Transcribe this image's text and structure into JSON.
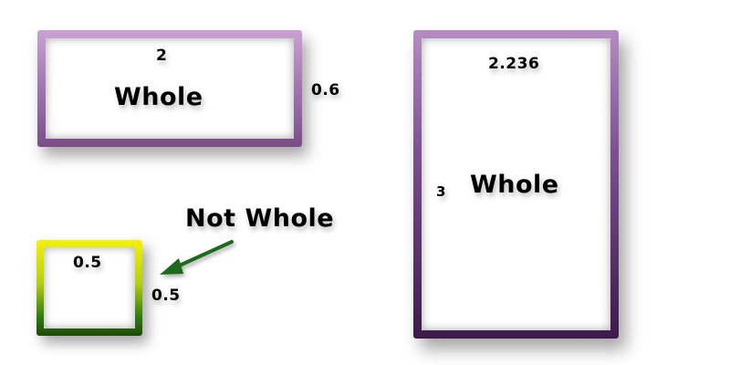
{
  "shapes": {
    "rect_wide": {
      "top_label": "2",
      "side_label": "0.6",
      "center_label": "Whole",
      "border_color": "#a57ab4"
    },
    "rect_tall": {
      "top_label": "2.236",
      "side_label": "3",
      "center_label": "Whole",
      "border_color": "#5a2d6b"
    },
    "square": {
      "top_label": "0.5",
      "side_label": "0.5",
      "border_color": "#c8d400"
    }
  },
  "callout": {
    "text": "Not Whole",
    "arrow_color": "#1f6b1f"
  }
}
